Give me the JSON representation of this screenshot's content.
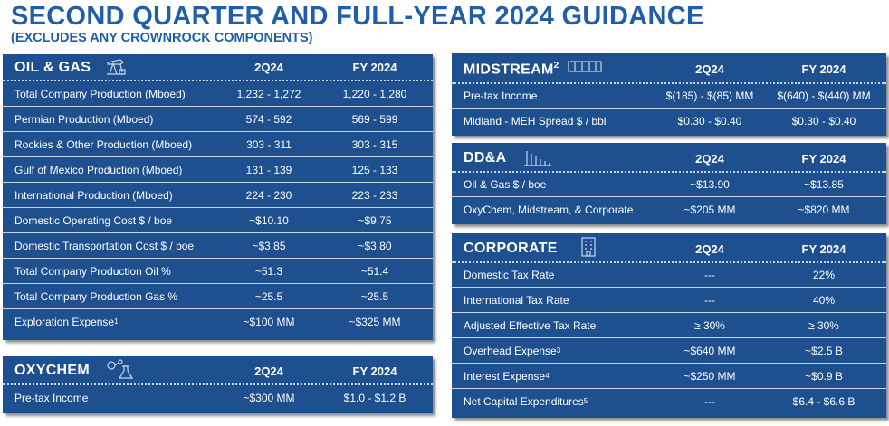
{
  "header": {
    "title": "SECOND QUARTER AND FULL-YEAR 2024 GUIDANCE",
    "subtitle": "(EXCLUDES ANY CROWNROCK COMPONENTS)"
  },
  "colors": {
    "panel": "#1e4f8f",
    "title": "#1f5ea8",
    "text": "#ffffff"
  },
  "oil_gas": {
    "title": "OIL & GAS",
    "icon": "oil-pump-icon",
    "col1": "2Q24",
    "col2": "FY 2024",
    "rows": [
      {
        "label": "Total Company Production (Mboed)",
        "q": "1,232 - 1,272",
        "fy": "1,220 - 1,280"
      },
      {
        "label": "Permian Production (Mboed)",
        "q": "574 - 592",
        "fy": "569 - 599"
      },
      {
        "label": "Rockies & Other Production (Mboed)",
        "q": "303 - 311",
        "fy": "303 - 315"
      },
      {
        "label": "Gulf of Mexico Production (Mboed)",
        "q": "131 - 139",
        "fy": "125 - 133"
      },
      {
        "label": "International Production (Mboed)",
        "q": "224 - 230",
        "fy": "223 - 233"
      },
      {
        "label": "Domestic Operating Cost $ / boe",
        "q": "~$10.10",
        "fy": "~$9.75"
      },
      {
        "label": "Domestic Transportation Cost $ / boe",
        "q": "~$3.85",
        "fy": "~$3.80"
      },
      {
        "label": "Total Company Production Oil %",
        "q": "~51.3",
        "fy": "~51.4"
      },
      {
        "label": "Total Company Production Gas %",
        "q": "~25.5",
        "fy": "~25.5"
      },
      {
        "label": "Exploration Expense",
        "sup": "1",
        "q": "~$100 MM",
        "fy": "~$325 MM"
      }
    ]
  },
  "oxychem": {
    "title": "OXYCHEM",
    "icon": "chemistry-flask-icon",
    "col1": "2Q24",
    "col2": "FY 2024",
    "rows": [
      {
        "label": "Pre-tax Income",
        "q": "~$300 MM",
        "fy": "$1.0 - $1.2 B"
      }
    ]
  },
  "midstream": {
    "title": "MIDSTREAM",
    "title_sup": "2",
    "icon": "pipeline-icon",
    "col1": "2Q24",
    "col2": "FY 2024",
    "rows": [
      {
        "label": "Pre-tax Income",
        "q": "$(185) - $(85) MM",
        "fy": "$(640) - $(440) MM"
      },
      {
        "label": "Midland - MEH Spread $ / bbl",
        "q": "$0.30 - $0.40",
        "fy": "$0.30 - $0.40"
      }
    ]
  },
  "dda": {
    "title": "DD&A",
    "icon": "bar-chart-icon",
    "col1": "2Q24",
    "col2": "FY 2024",
    "rows": [
      {
        "label": "Oil & Gas $ / boe",
        "q": "~$13.90",
        "fy": "~$13.85"
      },
      {
        "label": "OxyChem, Midstream, & Corporate",
        "q": "~$205 MM",
        "fy": "~$820 MM"
      }
    ]
  },
  "corporate": {
    "title": "CORPORATE",
    "icon": "building-icon",
    "col1": "2Q24",
    "col2": "FY 2024",
    "rows": [
      {
        "label": "Domestic Tax Rate",
        "q": "---",
        "fy": "22%"
      },
      {
        "label": "International Tax Rate",
        "q": "---",
        "fy": "40%"
      },
      {
        "label": "Adjusted Effective Tax Rate",
        "q": "≥ 30%",
        "fy": "≥ 30%"
      },
      {
        "label": "Overhead Expense",
        "sup": "3",
        "q": "~$640 MM",
        "fy": "~$2.5 B"
      },
      {
        "label": "Interest Expense",
        "sup": "4",
        "q": "~$250 MM",
        "fy": "~$0.9 B"
      },
      {
        "label": "Net Capital Expenditures",
        "sup": "5",
        "q": "---",
        "fy": "$6.4 - $6.6 B"
      }
    ]
  }
}
